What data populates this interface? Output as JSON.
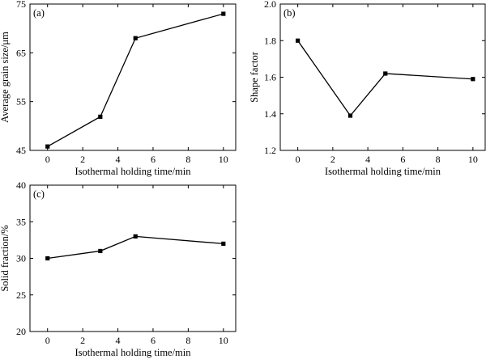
{
  "chart_data": [
    {
      "type": "line",
      "panel_label": "(a)",
      "xlabel": "Isothermal holding time/min",
      "ylabel": "Average grain size/μm",
      "xlim": [
        -1,
        10.7
      ],
      "ylim": [
        45,
        75
      ],
      "xticks": [
        0,
        2,
        4,
        6,
        8,
        10
      ],
      "yticks": [
        45,
        55,
        65,
        75
      ],
      "ytick_labels": [
        "45",
        "55",
        "65",
        "75"
      ],
      "x": [
        0,
        3,
        5,
        10
      ],
      "series": [
        {
          "values": [
            45.8,
            51.9,
            68.0,
            73.0
          ]
        }
      ],
      "marker": "square",
      "grid": false
    },
    {
      "type": "line",
      "panel_label": "(b)",
      "xlabel": "Isothermal holding time/min",
      "ylabel": "Shape factor",
      "xlim": [
        -1,
        10.7
      ],
      "ylim": [
        1.2,
        2.0
      ],
      "xticks": [
        0,
        2,
        4,
        6,
        8,
        10
      ],
      "yticks": [
        1.2,
        1.4,
        1.6,
        1.8,
        2.0
      ],
      "ytick_labels": [
        "1.2",
        "1.4",
        "1.6",
        "1.8",
        "2.0"
      ],
      "x": [
        0,
        3,
        5,
        10
      ],
      "series": [
        {
          "values": [
            1.8,
            1.39,
            1.62,
            1.59
          ]
        }
      ],
      "marker": "square",
      "grid": false
    },
    {
      "type": "line",
      "panel_label": "(c)",
      "xlabel": "Isothermal holding time/min",
      "ylabel": "Solid fraction/%",
      "xlim": [
        -1,
        10.7
      ],
      "ylim": [
        20,
        40
      ],
      "xticks": [
        0,
        2,
        4,
        6,
        8,
        10
      ],
      "yticks": [
        20,
        25,
        30,
        35,
        40
      ],
      "ytick_labels": [
        "20",
        "25",
        "30",
        "35",
        "40"
      ],
      "x": [
        0,
        3,
        5,
        10
      ],
      "series": [
        {
          "values": [
            30.0,
            31.0,
            33.0,
            32.0
          ]
        }
      ],
      "marker": "square",
      "grid": false
    }
  ]
}
